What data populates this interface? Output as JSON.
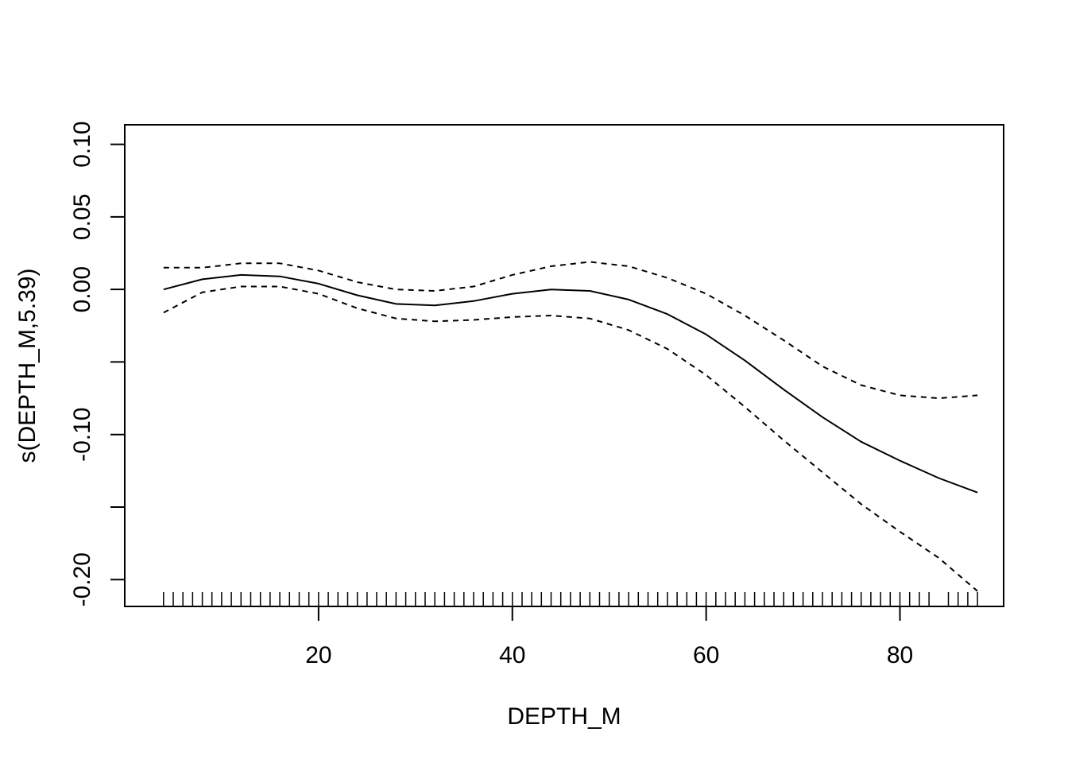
{
  "chart_data": {
    "type": "line",
    "title": "",
    "xlabel": "DEPTH_M",
    "ylabel": "s(DEPTH_M,5.39)",
    "xlim": [
      0,
      90.7
    ],
    "ylim": [
      -0.2185,
      0.1135
    ],
    "x_ticks": [
      20,
      40,
      60,
      80
    ],
    "x_tick_labels": [
      "20",
      "40",
      "60",
      "80"
    ],
    "y_ticks": [
      -0.2,
      -0.15,
      -0.1,
      -0.05,
      0.0,
      0.05,
      0.1
    ],
    "y_tick_labels": [
      "-0.20",
      "",
      "-0.10",
      "",
      "0.00",
      "0.05",
      "0.10"
    ],
    "grid": false,
    "legend": "none",
    "series": [
      {
        "style": "solid",
        "x": [
          4,
          8,
          12,
          16,
          20,
          24,
          28,
          32,
          36,
          40,
          44,
          48,
          52,
          56,
          60,
          64,
          68,
          72,
          76,
          80,
          84,
          88
        ],
        "y": [
          0.0,
          0.007,
          0.01,
          0.009,
          0.004,
          -0.004,
          -0.01,
          -0.011,
          -0.008,
          -0.003,
          0.0,
          -0.001,
          -0.007,
          -0.017,
          -0.031,
          -0.049,
          -0.069,
          -0.088,
          -0.105,
          -0.118,
          -0.13,
          -0.14
        ]
      },
      {
        "style": "dashed",
        "x": [
          4,
          8,
          12,
          16,
          20,
          24,
          28,
          32,
          36,
          40,
          44,
          48,
          52,
          56,
          60,
          64,
          68,
          72,
          76,
          80,
          84,
          88
        ],
        "y": [
          0.015,
          0.015,
          0.018,
          0.018,
          0.013,
          0.005,
          0.0,
          -0.001,
          0.002,
          0.01,
          0.016,
          0.019,
          0.016,
          0.008,
          -0.003,
          -0.018,
          -0.035,
          -0.053,
          -0.066,
          -0.073,
          -0.075,
          -0.073
        ]
      },
      {
        "style": "dashed",
        "x": [
          4,
          8,
          12,
          16,
          20,
          24,
          28,
          32,
          36,
          40,
          44,
          48,
          52,
          56,
          60,
          64,
          68,
          72,
          76,
          80,
          84,
          88
        ],
        "y": [
          -0.016,
          -0.002,
          0.002,
          0.002,
          -0.003,
          -0.013,
          -0.02,
          -0.022,
          -0.021,
          -0.019,
          -0.018,
          -0.02,
          -0.028,
          -0.041,
          -0.059,
          -0.081,
          -0.104,
          -0.126,
          -0.148,
          -0.167,
          -0.185,
          -0.208
        ]
      }
    ],
    "rug": [
      4,
      5,
      6,
      7,
      8,
      9,
      10,
      11,
      12,
      13,
      14,
      15,
      16,
      17,
      18,
      19,
      20,
      21,
      22,
      23,
      24,
      25,
      26,
      27,
      28,
      29,
      30,
      31,
      32,
      33,
      34,
      35,
      36,
      37,
      38,
      39,
      40,
      41,
      42,
      43,
      44,
      45,
      46,
      47,
      48,
      49,
      50,
      51,
      52,
      53,
      54,
      55,
      56,
      57,
      58,
      59,
      60,
      61,
      62,
      63,
      64,
      65,
      66,
      67,
      68,
      69,
      70,
      71,
      72,
      73,
      74,
      75,
      76,
      77,
      78,
      79,
      80,
      81,
      82,
      83,
      85,
      86,
      87,
      88
    ]
  }
}
